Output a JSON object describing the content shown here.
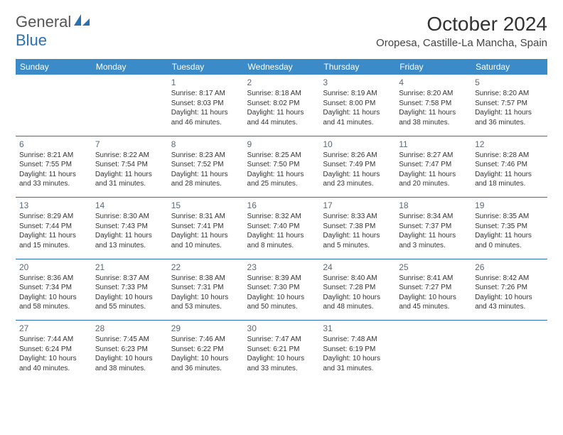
{
  "brand": {
    "part1": "General",
    "part2": "Blue"
  },
  "title": "October 2024",
  "location": "Oropesa, Castille-La Mancha, Spain",
  "header_color": "#3b8bc8",
  "separator_color": "#2a72b5",
  "day_headers": [
    "Sunday",
    "Monday",
    "Tuesday",
    "Wednesday",
    "Thursday",
    "Friday",
    "Saturday"
  ],
  "weeks": [
    [
      null,
      null,
      {
        "n": "1",
        "sr": "Sunrise: 8:17 AM",
        "ss": "Sunset: 8:03 PM",
        "d1": "Daylight: 11 hours",
        "d2": "and 46 minutes."
      },
      {
        "n": "2",
        "sr": "Sunrise: 8:18 AM",
        "ss": "Sunset: 8:02 PM",
        "d1": "Daylight: 11 hours",
        "d2": "and 44 minutes."
      },
      {
        "n": "3",
        "sr": "Sunrise: 8:19 AM",
        "ss": "Sunset: 8:00 PM",
        "d1": "Daylight: 11 hours",
        "d2": "and 41 minutes."
      },
      {
        "n": "4",
        "sr": "Sunrise: 8:20 AM",
        "ss": "Sunset: 7:58 PM",
        "d1": "Daylight: 11 hours",
        "d2": "and 38 minutes."
      },
      {
        "n": "5",
        "sr": "Sunrise: 8:20 AM",
        "ss": "Sunset: 7:57 PM",
        "d1": "Daylight: 11 hours",
        "d2": "and 36 minutes."
      }
    ],
    [
      {
        "n": "6",
        "sr": "Sunrise: 8:21 AM",
        "ss": "Sunset: 7:55 PM",
        "d1": "Daylight: 11 hours",
        "d2": "and 33 minutes."
      },
      {
        "n": "7",
        "sr": "Sunrise: 8:22 AM",
        "ss": "Sunset: 7:54 PM",
        "d1": "Daylight: 11 hours",
        "d2": "and 31 minutes."
      },
      {
        "n": "8",
        "sr": "Sunrise: 8:23 AM",
        "ss": "Sunset: 7:52 PM",
        "d1": "Daylight: 11 hours",
        "d2": "and 28 minutes."
      },
      {
        "n": "9",
        "sr": "Sunrise: 8:25 AM",
        "ss": "Sunset: 7:50 PM",
        "d1": "Daylight: 11 hours",
        "d2": "and 25 minutes."
      },
      {
        "n": "10",
        "sr": "Sunrise: 8:26 AM",
        "ss": "Sunset: 7:49 PM",
        "d1": "Daylight: 11 hours",
        "d2": "and 23 minutes."
      },
      {
        "n": "11",
        "sr": "Sunrise: 8:27 AM",
        "ss": "Sunset: 7:47 PM",
        "d1": "Daylight: 11 hours",
        "d2": "and 20 minutes."
      },
      {
        "n": "12",
        "sr": "Sunrise: 8:28 AM",
        "ss": "Sunset: 7:46 PM",
        "d1": "Daylight: 11 hours",
        "d2": "and 18 minutes."
      }
    ],
    [
      {
        "n": "13",
        "sr": "Sunrise: 8:29 AM",
        "ss": "Sunset: 7:44 PM",
        "d1": "Daylight: 11 hours",
        "d2": "and 15 minutes."
      },
      {
        "n": "14",
        "sr": "Sunrise: 8:30 AM",
        "ss": "Sunset: 7:43 PM",
        "d1": "Daylight: 11 hours",
        "d2": "and 13 minutes."
      },
      {
        "n": "15",
        "sr": "Sunrise: 8:31 AM",
        "ss": "Sunset: 7:41 PM",
        "d1": "Daylight: 11 hours",
        "d2": "and 10 minutes."
      },
      {
        "n": "16",
        "sr": "Sunrise: 8:32 AM",
        "ss": "Sunset: 7:40 PM",
        "d1": "Daylight: 11 hours",
        "d2": "and 8 minutes."
      },
      {
        "n": "17",
        "sr": "Sunrise: 8:33 AM",
        "ss": "Sunset: 7:38 PM",
        "d1": "Daylight: 11 hours",
        "d2": "and 5 minutes."
      },
      {
        "n": "18",
        "sr": "Sunrise: 8:34 AM",
        "ss": "Sunset: 7:37 PM",
        "d1": "Daylight: 11 hours",
        "d2": "and 3 minutes."
      },
      {
        "n": "19",
        "sr": "Sunrise: 8:35 AM",
        "ss": "Sunset: 7:35 PM",
        "d1": "Daylight: 11 hours",
        "d2": "and 0 minutes."
      }
    ],
    [
      {
        "n": "20",
        "sr": "Sunrise: 8:36 AM",
        "ss": "Sunset: 7:34 PM",
        "d1": "Daylight: 10 hours",
        "d2": "and 58 minutes."
      },
      {
        "n": "21",
        "sr": "Sunrise: 8:37 AM",
        "ss": "Sunset: 7:33 PM",
        "d1": "Daylight: 10 hours",
        "d2": "and 55 minutes."
      },
      {
        "n": "22",
        "sr": "Sunrise: 8:38 AM",
        "ss": "Sunset: 7:31 PM",
        "d1": "Daylight: 10 hours",
        "d2": "and 53 minutes."
      },
      {
        "n": "23",
        "sr": "Sunrise: 8:39 AM",
        "ss": "Sunset: 7:30 PM",
        "d1": "Daylight: 10 hours",
        "d2": "and 50 minutes."
      },
      {
        "n": "24",
        "sr": "Sunrise: 8:40 AM",
        "ss": "Sunset: 7:28 PM",
        "d1": "Daylight: 10 hours",
        "d2": "and 48 minutes."
      },
      {
        "n": "25",
        "sr": "Sunrise: 8:41 AM",
        "ss": "Sunset: 7:27 PM",
        "d1": "Daylight: 10 hours",
        "d2": "and 45 minutes."
      },
      {
        "n": "26",
        "sr": "Sunrise: 8:42 AM",
        "ss": "Sunset: 7:26 PM",
        "d1": "Daylight: 10 hours",
        "d2": "and 43 minutes."
      }
    ],
    [
      {
        "n": "27",
        "sr": "Sunrise: 7:44 AM",
        "ss": "Sunset: 6:24 PM",
        "d1": "Daylight: 10 hours",
        "d2": "and 40 minutes."
      },
      {
        "n": "28",
        "sr": "Sunrise: 7:45 AM",
        "ss": "Sunset: 6:23 PM",
        "d1": "Daylight: 10 hours",
        "d2": "and 38 minutes."
      },
      {
        "n": "29",
        "sr": "Sunrise: 7:46 AM",
        "ss": "Sunset: 6:22 PM",
        "d1": "Daylight: 10 hours",
        "d2": "and 36 minutes."
      },
      {
        "n": "30",
        "sr": "Sunrise: 7:47 AM",
        "ss": "Sunset: 6:21 PM",
        "d1": "Daylight: 10 hours",
        "d2": "and 33 minutes."
      },
      {
        "n": "31",
        "sr": "Sunrise: 7:48 AM",
        "ss": "Sunset: 6:19 PM",
        "d1": "Daylight: 10 hours",
        "d2": "and 31 minutes."
      },
      null,
      null
    ]
  ]
}
